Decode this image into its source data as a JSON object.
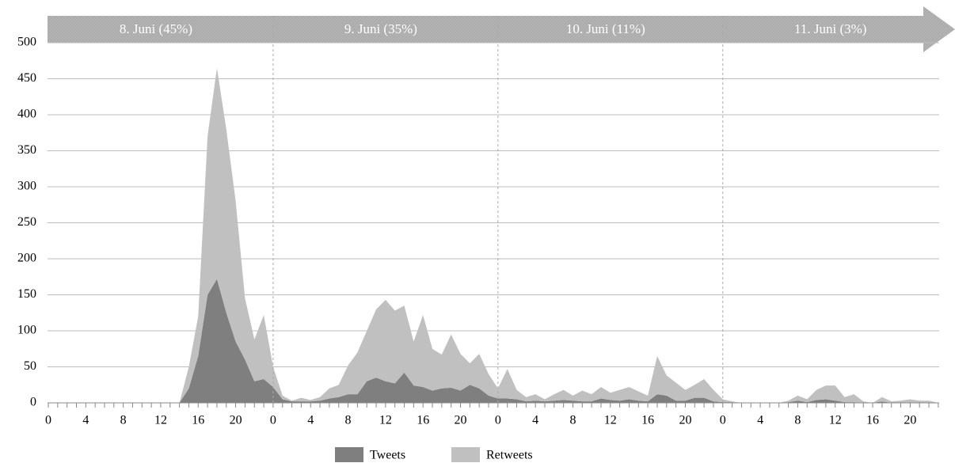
{
  "chart_data": {
    "type": "stacked-area",
    "bands": [
      "8. Juni (45%)",
      "9. Juni (35%)",
      "10. Juni (11%)",
      "11. Juni (3%)"
    ],
    "categories": [
      "0",
      null,
      null,
      null,
      "4",
      null,
      null,
      null,
      "8",
      null,
      null,
      null,
      "12",
      null,
      null,
      null,
      "16",
      null,
      null,
      null,
      "20",
      null,
      null,
      null,
      "0",
      null,
      null,
      null,
      "4",
      null,
      null,
      null,
      "8",
      null,
      null,
      null,
      "12",
      null,
      null,
      null,
      "16",
      null,
      null,
      null,
      "20",
      null,
      null,
      null,
      "0",
      null,
      null,
      null,
      "4",
      null,
      null,
      null,
      "8",
      null,
      null,
      null,
      "12",
      null,
      null,
      null,
      "16",
      null,
      null,
      null,
      "20",
      null,
      null,
      null,
      "0",
      null,
      null,
      null,
      "4",
      null,
      null,
      null,
      "8",
      null,
      null,
      null,
      "12",
      null,
      null,
      null,
      "16",
      null,
      null,
      null,
      "20",
      null,
      null,
      null
    ],
    "series": [
      {
        "name": "Tweets",
        "color": "#7f7f7f",
        "values": [
          0,
          0,
          0,
          0,
          0,
          0,
          0,
          0,
          0,
          0,
          0,
          0,
          0,
          0,
          0,
          20,
          65,
          150,
          172,
          125,
          85,
          60,
          30,
          33,
          22,
          5,
          2,
          2,
          2,
          3,
          6,
          8,
          12,
          12,
          30,
          35,
          30,
          27,
          42,
          24,
          22,
          17,
          20,
          21,
          17,
          25,
          20,
          10,
          6,
          6,
          5,
          2,
          3,
          2,
          3,
          4,
          3,
          2,
          2,
          6,
          4,
          3,
          5,
          3,
          2,
          12,
          10,
          3,
          3,
          7,
          7,
          2,
          1,
          1,
          0,
          0,
          0,
          0,
          0,
          1,
          3,
          1,
          4,
          5,
          3,
          1,
          1,
          0,
          0,
          2,
          0,
          0,
          1,
          0,
          0,
          0
        ]
      },
      {
        "name": "Retweets",
        "color": "#c0c0c0",
        "values": [
          0,
          0,
          0,
          0,
          0,
          0,
          0,
          0,
          0,
          0,
          0,
          0,
          0,
          0,
          0,
          30,
          55,
          220,
          293,
          255,
          195,
          85,
          58,
          89,
          28,
          5,
          1,
          5,
          2,
          5,
          14,
          17,
          40,
          58,
          70,
          95,
          113,
          101,
          93,
          61,
          100,
          58,
          47,
          74,
          51,
          30,
          48,
          30,
          14,
          41,
          13,
          6,
          9,
          3,
          9,
          14,
          7,
          15,
          10,
          16,
          10,
          15,
          17,
          13,
          8,
          53,
          28,
          25,
          15,
          18,
          26,
          16,
          4,
          1,
          0,
          0,
          0,
          0,
          0,
          2,
          7,
          4,
          14,
          19,
          21,
          7,
          11,
          2,
          0,
          6,
          2,
          3,
          4,
          3,
          3,
          0
        ]
      }
    ],
    "ylim": [
      0,
      500
    ],
    "yticks": [
      0,
      50,
      100,
      150,
      200,
      250,
      300,
      350,
      400,
      450,
      500
    ],
    "grid": true
  }
}
